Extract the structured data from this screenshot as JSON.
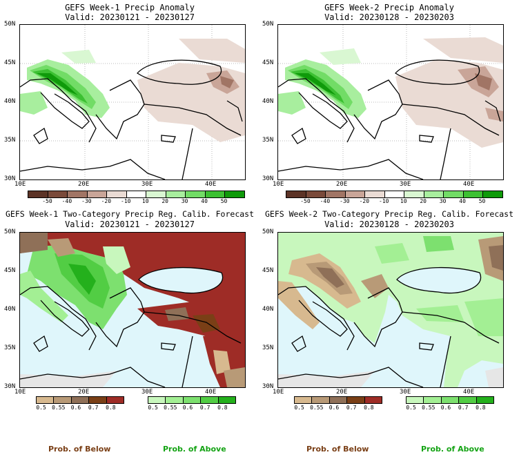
{
  "panels": [
    {
      "title1": "GEFS Week-1 Precip Anomaly",
      "title2": "Valid: 20230121 - 20230127"
    },
    {
      "title1": "GEFS Week-2 Precip Anomaly",
      "title2": "Valid: 20230128 - 20230203"
    },
    {
      "title1": "GEFS Week-1 Two-Category Precip Reg. Calib. Forecast",
      "title2": "Valid: 20230121 - 20230127"
    },
    {
      "title1": "GEFS Week-2 Two-Category Precip Reg. Calib. Forecast",
      "title2": "Valid: 20230128 - 20230203"
    }
  ],
  "axes": {
    "lat_labels": [
      "50N",
      "45N",
      "40N",
      "35N",
      "30N"
    ],
    "lon_labels": [
      "10E",
      "20E",
      "30E",
      "40E"
    ]
  },
  "anomaly_colorbar": {
    "colors": [
      "#5c3326",
      "#7a4a3a",
      "#a17565",
      "#c9a598",
      "#eadbd4",
      "#ffffff",
      "#d9f7d2",
      "#a8ee9e",
      "#72dc66",
      "#3cc032",
      "#0f9a0a"
    ],
    "ticks": [
      "-50",
      "-40",
      "-30",
      "-20",
      "-10",
      "10",
      "20",
      "30",
      "40",
      "50"
    ]
  },
  "below_colorbar": {
    "colors": [
      "#d7b98f",
      "#b89a77",
      "#8f7058",
      "#7a3f16",
      "#9e2c26"
    ],
    "ticks": [
      "0.5",
      "0.55",
      "0.6",
      "0.7",
      "0.8"
    ],
    "label": "Prob. of Below"
  },
  "above_colorbar": {
    "colors": [
      "#c8f7bd",
      "#a3ef94",
      "#7de06f",
      "#52cd44",
      "#24b01c"
    ],
    "ticks": [
      "0.5",
      "0.55",
      "0.6",
      "0.7",
      "0.8"
    ],
    "label": "Prob. of Above"
  },
  "colors": {
    "sea_fill": "#dff6fb",
    "label_below": "#7a3f16",
    "label_above": "#14a314"
  }
}
